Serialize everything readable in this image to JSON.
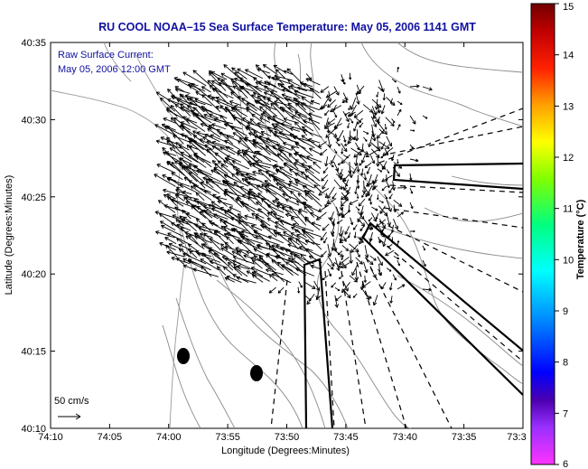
{
  "title": "RU COOL  NOAA–15  Sea Surface Temperature:  May 05, 2006 1141 GMT",
  "annotation": {
    "line1": "Raw Surface Current:",
    "line2": "May 05, 2006 12:00 GMT"
  },
  "scale": {
    "label": "50 cm/s"
  },
  "axes": {
    "xlabel": "Longitude (Degrees:Minutes)",
    "ylabel": "Latitude (Degrees:Minutes)",
    "x_ticks": [
      "74:10",
      "74:05",
      "74:00",
      "73:55",
      "73:50",
      "73:45",
      "73:40",
      "73:35",
      "73:3"
    ],
    "y_ticks": [
      "40:35",
      "40:30",
      "40:25",
      "40:20",
      "40:15",
      "40:10"
    ]
  },
  "colorbar": {
    "label": "Temperature (°C)",
    "ticks": [
      "15",
      "14",
      "13",
      "12",
      "11",
      "10",
      "9",
      "8",
      "7",
      "6"
    ],
    "min": 6,
    "max": 15,
    "colors": [
      "#ff33ff",
      "#4b00b0",
      "#0000ff",
      "#00a0ff",
      "#00ffff",
      "#00ff80",
      "#80ff00",
      "#ffff00",
      "#ffa000",
      "#ff2000",
      "#c00000",
      "#800000"
    ]
  }
}
